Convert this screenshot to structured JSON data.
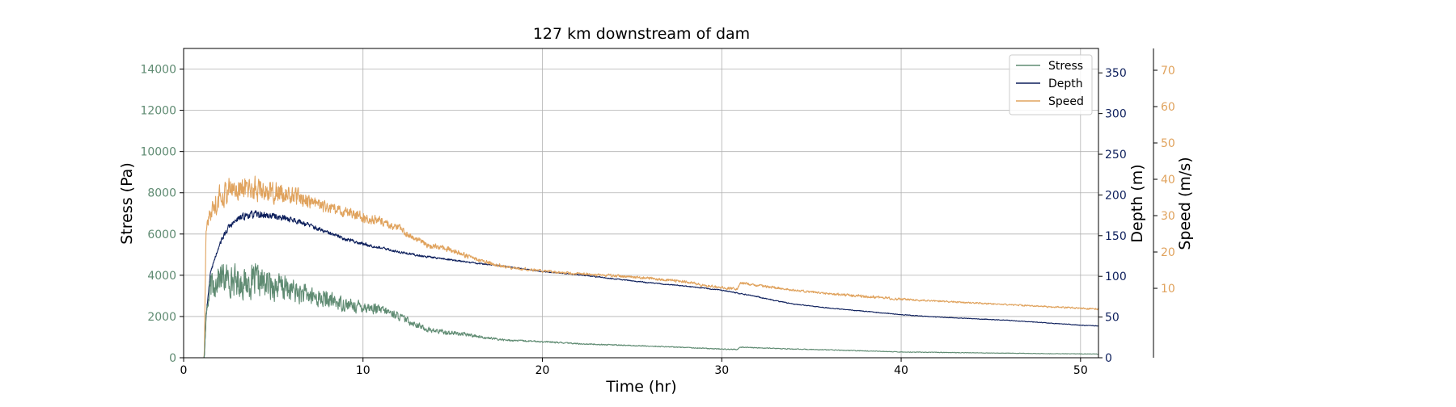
{
  "chart_data": {
    "type": "line",
    "title": "127 km downstream of dam",
    "xlabel": "Time (hr)",
    "xlim": [
      0,
      51
    ],
    "xticks": [
      0,
      10,
      20,
      30,
      40,
      50
    ],
    "grid": true,
    "legend_placement": "top-right",
    "axes": {
      "stress": {
        "label": "Stress (Pa)",
        "ylim": [
          0,
          15000
        ],
        "ticks": [
          0,
          2000,
          4000,
          6000,
          8000,
          10000,
          12000,
          14000
        ],
        "color": "#5f8b72"
      },
      "depth": {
        "label": "Depth (m)",
        "ylim": [
          0,
          380
        ],
        "ticks": [
          0,
          50,
          100,
          150,
          200,
          250,
          300,
          350
        ],
        "color": "#0d1f5c"
      },
      "speed": {
        "label": "Speed (m/s)",
        "ylim": [
          -9.1,
          76
        ],
        "ticks": [
          10,
          20,
          30,
          40,
          50,
          60,
          70
        ],
        "color": "#e0a35e"
      }
    },
    "series": [
      {
        "name": "Stress",
        "axis": "stress",
        "color": "#5f8b72",
        "x": [
          0,
          1.15,
          1.25,
          1.5,
          2,
          2.5,
          3,
          3.5,
          4,
          4.5,
          5,
          5.5,
          6,
          6.5,
          7,
          7.5,
          8,
          8.5,
          9,
          9.5,
          10,
          10.5,
          11,
          11.5,
          12,
          12.5,
          13,
          13.5,
          14,
          14.5,
          15,
          15.5,
          16,
          17,
          18,
          20,
          22,
          24,
          26,
          28,
          30,
          30.9,
          31,
          32,
          34,
          36,
          38,
          40,
          42,
          44,
          46,
          48,
          50,
          51
        ],
        "y": [
          0,
          0,
          2000,
          3400,
          3900,
          3800,
          3700,
          3600,
          3700,
          3600,
          3500,
          3400,
          3300,
          3100,
          3000,
          2900,
          2800,
          2700,
          2600,
          2500,
          2500,
          2400,
          2300,
          2200,
          2000,
          1800,
          1600,
          1400,
          1300,
          1250,
          1200,
          1150,
          1100,
          950,
          850,
          780,
          680,
          620,
          560,
          500,
          420,
          400,
          520,
          480,
          420,
          380,
          330,
          280,
          260,
          240,
          220,
          200,
          190,
          180
        ],
        "noise": [
          0,
          0,
          300,
          900,
          1000,
          1000,
          1000,
          1000,
          1100,
          1000,
          900,
          900,
          800,
          700,
          650,
          600,
          550,
          500,
          450,
          400,
          400,
          350,
          320,
          280,
          250,
          220,
          200,
          180,
          170,
          160,
          150,
          130,
          110,
          80,
          60,
          50,
          40,
          35,
          35,
          30,
          30,
          30,
          30,
          30,
          25,
          25,
          25,
          20,
          20,
          15,
          15,
          15,
          15,
          15
        ]
      },
      {
        "name": "Depth",
        "axis": "depth",
        "color": "#0d1f5c",
        "x": [
          0,
          1.15,
          1.25,
          1.5,
          2,
          2.5,
          3,
          3.5,
          4,
          4.5,
          5,
          5.5,
          6,
          6.5,
          7,
          7.5,
          8,
          8.5,
          9,
          9.5,
          10,
          11,
          12,
          13,
          14,
          15,
          16,
          18,
          20,
          22,
          24,
          26,
          28,
          30,
          31,
          32,
          33,
          34,
          36,
          38,
          40,
          42,
          44,
          46,
          48,
          50,
          51
        ],
        "y": [
          0,
          0,
          50,
          105,
          140,
          160,
          170,
          175,
          176,
          175,
          174,
          172,
          170,
          167,
          163,
          158,
          154,
          150,
          146,
          143,
          140,
          135,
          130,
          126,
          123,
          120,
          117,
          112,
          106,
          102,
          97,
          92,
          88,
          83,
          79,
          75,
          70,
          66,
          61,
          57,
          53,
          50,
          48,
          46,
          43,
          40,
          39
        ],
        "noise": [
          0,
          0,
          2,
          3,
          4,
          5,
          5,
          6,
          6,
          6,
          5,
          5,
          5,
          4,
          4,
          4,
          3,
          3,
          3,
          3,
          3,
          2,
          2,
          2,
          1.5,
          1.5,
          1.2,
          1,
          1,
          1,
          0.8,
          0.8,
          0.8,
          0.8,
          0.8,
          0.8,
          0.8,
          0.6,
          0.6,
          0.6,
          0.5,
          0.5,
          0.5,
          0.5,
          0.5,
          0.5,
          0.5
        ]
      },
      {
        "name": "Speed",
        "axis": "speed",
        "color": "#e0a35e",
        "x": [
          0,
          1.15,
          1.25,
          1.5,
          2,
          2.5,
          3,
          3.5,
          4,
          4.5,
          5,
          5.5,
          6,
          6.5,
          7,
          7.5,
          8,
          8.5,
          9,
          9.5,
          10,
          10.5,
          11,
          11.5,
          12,
          12.5,
          13,
          13.5,
          14,
          14.5,
          15,
          15.5,
          16,
          17,
          18,
          20,
          22,
          24,
          26,
          28,
          29,
          30,
          30.9,
          31,
          32,
          34,
          36,
          38,
          40,
          42,
          44,
          46,
          48,
          50,
          51
        ],
        "y": [
          -9.1,
          -9.1,
          27,
          31,
          35,
          37,
          37.5,
          37.5,
          37.5,
          37,
          36.5,
          36,
          35.5,
          35,
          34,
          33,
          32,
          31.5,
          31,
          30.5,
          29.5,
          29,
          28.5,
          27.5,
          26.5,
          25,
          23.5,
          22,
          21.5,
          21,
          20.5,
          19.5,
          18.5,
          17,
          15.8,
          14.8,
          14,
          13.5,
          12.7,
          11.8,
          10.8,
          10.2,
          9.8,
          11.5,
          10.8,
          9.5,
          8.5,
          7.8,
          7,
          6.5,
          6,
          5.5,
          5,
          4.5,
          4.3
        ],
        "noise": [
          0,
          0,
          2,
          4,
          4.5,
          4.5,
          4.5,
          4.5,
          4.5,
          4.2,
          4,
          3.5,
          3.3,
          3,
          2.8,
          2.5,
          2.3,
          2.1,
          2,
          2,
          2,
          1.8,
          1.7,
          1.5,
          1.4,
          1.3,
          1.2,
          1.1,
          1,
          1,
          1,
          0.9,
          0.8,
          0.7,
          0.6,
          0.5,
          0.5,
          0.5,
          0.5,
          0.5,
          0.5,
          0.5,
          0.5,
          0.5,
          0.5,
          0.4,
          0.4,
          0.6,
          0.4,
          0.3,
          0.3,
          0.3,
          0.3,
          0.3,
          0.3
        ]
      }
    ]
  }
}
